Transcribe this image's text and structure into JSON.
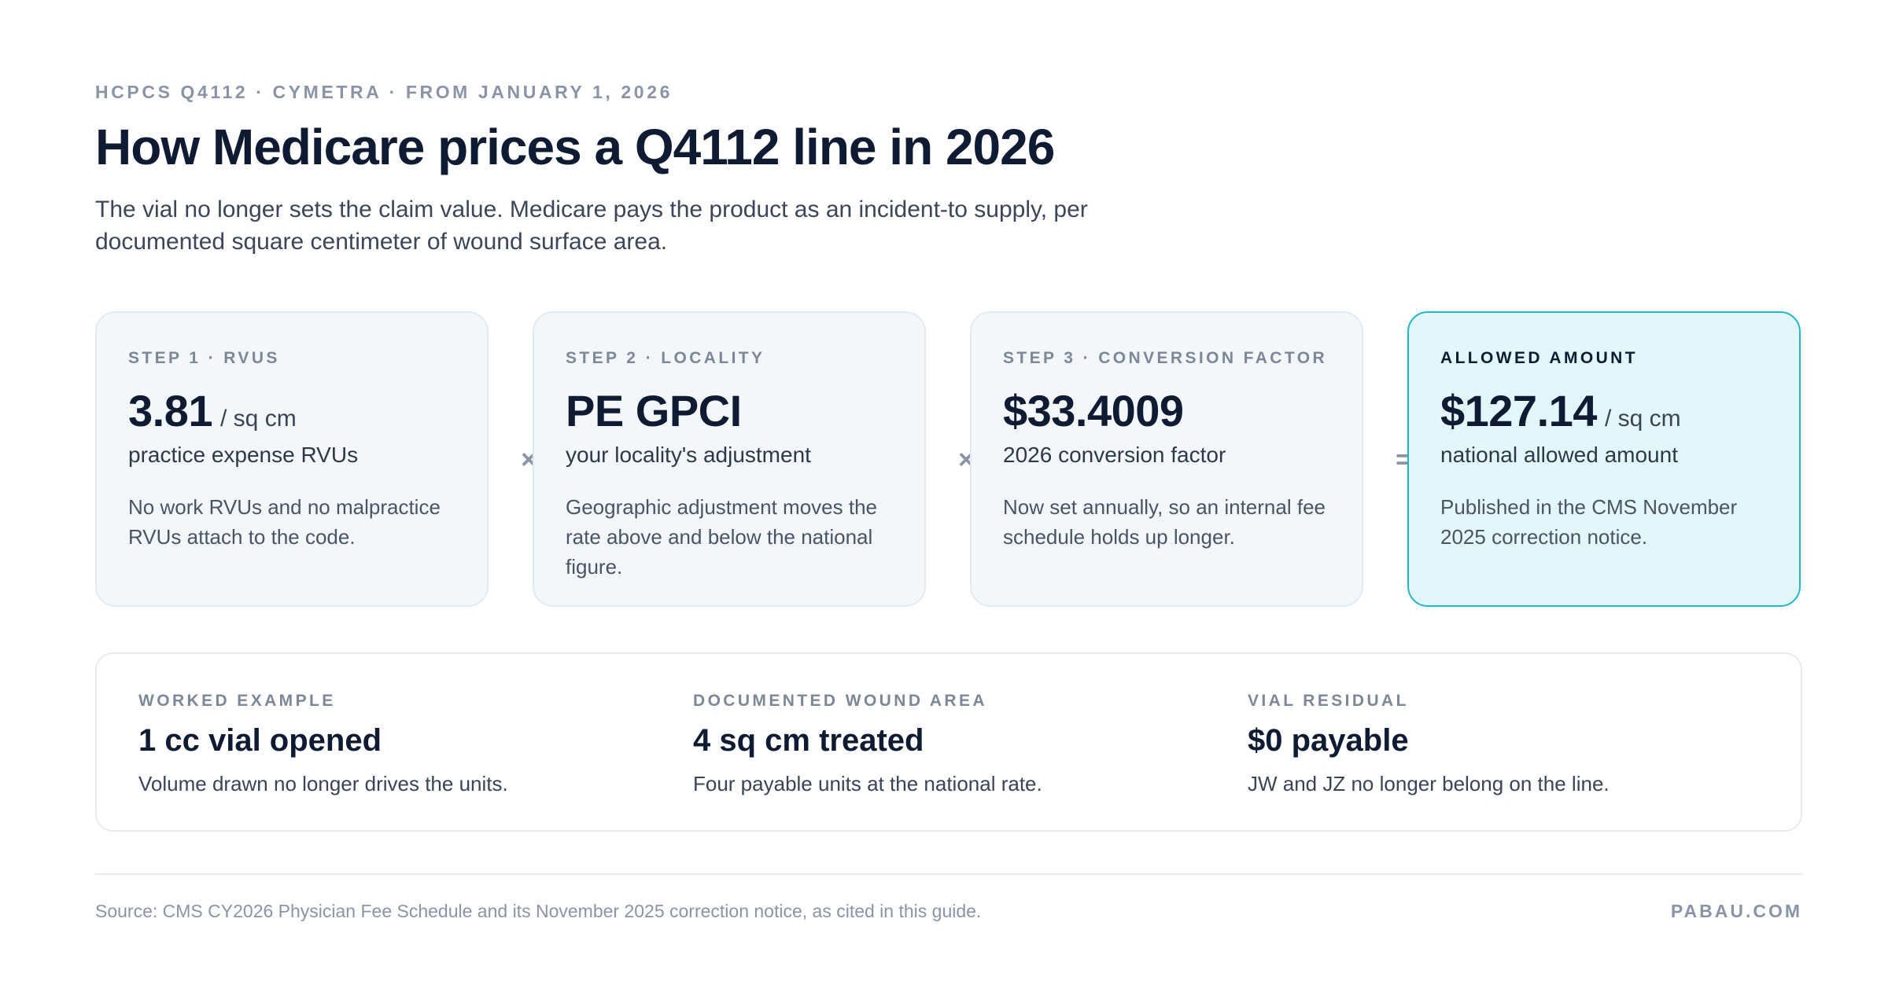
{
  "header": {
    "eyebrow": "HCPCS Q4112 · CYMETRA · FROM JANUARY 1, 2026",
    "title": "How Medicare prices a Q4112 line in 2026",
    "subtitle": "The vial no longer sets the claim value. Medicare pays the product as an incident-to supply, per documented square centimeter of wound surface area."
  },
  "steps": [
    {
      "label": "STEP 1 · RVUS",
      "value": "3.81",
      "unit": "/ sq cm",
      "description": "practice expense RVUs",
      "note": "No work RVUs and no malpractice RVUs attach to the code."
    },
    {
      "label": "STEP 2 · LOCALITY",
      "value": "PE GPCI",
      "unit": "",
      "description": "your locality's adjustment",
      "note": "Geographic adjustment moves the rate above and below the national figure."
    },
    {
      "label": "STEP 3 · CONVERSION FACTOR",
      "value": "$33.4009",
      "unit": "",
      "description": "2026 conversion factor",
      "note": "Now set annually, so an internal fee schedule holds up longer."
    },
    {
      "label": "ALLOWED AMOUNT",
      "value": "$127.14",
      "unit": "/ sq cm",
      "description": "national allowed amount",
      "note": "Published in the CMS November 2025 correction notice."
    }
  ],
  "operators": [
    "×",
    "×",
    "="
  ],
  "example": [
    {
      "label": "WORKED EXAMPLE",
      "value": "1 cc vial opened",
      "note": "Volume drawn no longer drives the units."
    },
    {
      "label": "DOCUMENTED WOUND AREA",
      "value": "4 sq cm treated",
      "note": "Four payable units at the national rate."
    },
    {
      "label": "VIAL RESIDUAL",
      "value": "$0 payable",
      "note": "JW and JZ no longer belong on the line."
    }
  ],
  "footer": {
    "source": "Source: CMS CY2026 Physician Fee Schedule and its November 2025 correction notice, as cited in this guide.",
    "brand": "PABAU.COM"
  },
  "colors": {
    "ink": "#0f1b33",
    "muted": "#8a94a6",
    "card_bg": "#f3f7fa",
    "accent": "#21b8c6",
    "accent_bg": "#e3f6f9"
  }
}
